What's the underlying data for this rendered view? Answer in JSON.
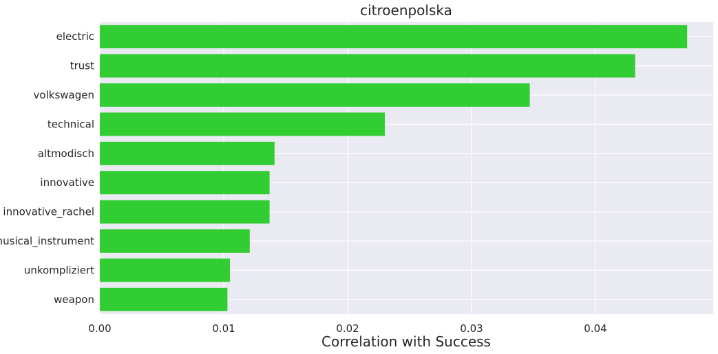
{
  "chart_data": {
    "type": "bar",
    "orientation": "horizontal",
    "title": "citroenpolska",
    "xlabel": "Correlation with Success",
    "ylabel": "",
    "categories": [
      "electric",
      "trust",
      "volkswagen",
      "technical",
      "altmodisch",
      "innovative",
      "innovative_rachel",
      "musical_instrument",
      "unkompliziert",
      "weapon"
    ],
    "values": [
      0.0474,
      0.0432,
      0.0347,
      0.023,
      0.0141,
      0.0137,
      0.0137,
      0.0121,
      0.0105,
      0.0103
    ],
    "xlim": [
      0,
      0.0495
    ],
    "xticks": [
      0.0,
      0.01,
      0.02,
      0.03,
      0.04
    ],
    "xtick_labels": [
      "0.00",
      "0.01",
      "0.02",
      "0.03",
      "0.04"
    ],
    "bar_color": "#32cd32",
    "background_color": "#eaeaf2",
    "grid": true,
    "legend": "none"
  }
}
